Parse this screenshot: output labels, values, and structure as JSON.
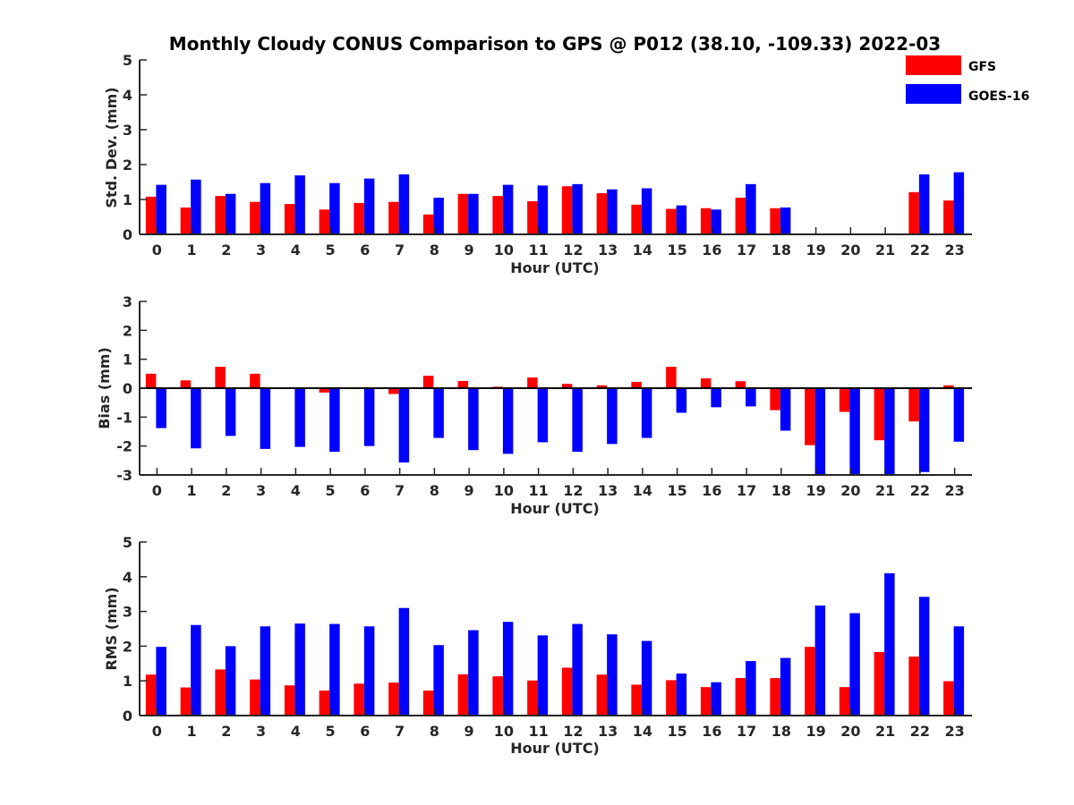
{
  "title": "Monthly Cloudy CONUS Comparison to GPS @ P012 (38.10, -109.33) 2022-03",
  "legend": [
    {
      "label": "GFS",
      "color": "#ff0000"
    },
    {
      "label": "GOES-16",
      "color": "#0000ff"
    }
  ],
  "chart_data": [
    {
      "type": "bar",
      "xlabel": "Hour (UTC)",
      "ylabel": "Std. Dev. (mm)",
      "ylim": [
        0,
        5
      ],
      "yticks": [
        0,
        1,
        2,
        3,
        4,
        5
      ],
      "categories": [
        "0",
        "1",
        "2",
        "3",
        "4",
        "5",
        "6",
        "7",
        "8",
        "9",
        "10",
        "11",
        "12",
        "13",
        "14",
        "15",
        "16",
        "17",
        "18",
        "19",
        "20",
        "21",
        "22",
        "23"
      ],
      "series": [
        {
          "name": "GFS",
          "color": "#ff0000",
          "values": [
            1.08,
            0.77,
            1.1,
            0.93,
            0.87,
            0.71,
            0.9,
            0.93,
            0.57,
            1.16,
            1.1,
            0.95,
            1.38,
            1.18,
            0.85,
            0.73,
            0.75,
            1.05,
            0.75,
            null,
            null,
            null,
            1.21,
            0.97
          ]
        },
        {
          "name": "GOES-16",
          "color": "#0000ff",
          "values": [
            1.42,
            1.57,
            1.16,
            1.47,
            1.69,
            1.47,
            1.6,
            1.72,
            1.05,
            1.16,
            1.42,
            1.4,
            1.44,
            1.29,
            1.32,
            0.83,
            0.71,
            1.44,
            0.77,
            null,
            null,
            null,
            1.72,
            1.78
          ]
        }
      ]
    },
    {
      "type": "bar",
      "xlabel": "Hour (UTC)",
      "ylabel": "Bias (mm)",
      "ylim": [
        -3,
        3
      ],
      "yticks": [
        -3,
        -2,
        -1,
        0,
        1,
        2,
        3
      ],
      "zero_line": true,
      "categories": [
        "0",
        "1",
        "2",
        "3",
        "4",
        "5",
        "6",
        "7",
        "8",
        "9",
        "10",
        "11",
        "12",
        "13",
        "14",
        "15",
        "16",
        "17",
        "18",
        "19",
        "20",
        "21",
        "22",
        "23"
      ],
      "series": [
        {
          "name": "GFS",
          "color": "#ff0000",
          "values": [
            0.5,
            0.27,
            0.74,
            0.5,
            0.0,
            -0.15,
            0.0,
            -0.2,
            0.43,
            0.25,
            0.05,
            0.37,
            0.15,
            0.1,
            0.22,
            0.74,
            0.34,
            0.24,
            -0.76,
            -1.97,
            -0.82,
            -1.8,
            -1.15,
            0.1
          ]
        },
        {
          "name": "GOES-16",
          "color": "#0000ff",
          "values": [
            -1.38,
            -2.08,
            -1.65,
            -2.1,
            -2.03,
            -2.2,
            -2.0,
            -2.57,
            -1.72,
            -2.14,
            -2.27,
            -1.87,
            -2.2,
            -1.93,
            -1.72,
            -0.85,
            -0.66,
            -0.63,
            -1.47,
            -3.0,
            -2.97,
            -3.0,
            -2.9,
            -1.85
          ]
        }
      ]
    },
    {
      "type": "bar",
      "xlabel": "Hour (UTC)",
      "ylabel": "RMS (mm)",
      "ylim": [
        0,
        5
      ],
      "yticks": [
        0,
        1,
        2,
        3,
        4,
        5
      ],
      "categories": [
        "0",
        "1",
        "2",
        "3",
        "4",
        "5",
        "6",
        "7",
        "8",
        "9",
        "10",
        "11",
        "12",
        "13",
        "14",
        "15",
        "16",
        "17",
        "18",
        "19",
        "20",
        "21",
        "22",
        "23"
      ],
      "series": [
        {
          "name": "GFS",
          "color": "#ff0000",
          "values": [
            1.18,
            0.81,
            1.33,
            1.04,
            0.87,
            0.72,
            0.92,
            0.95,
            0.72,
            1.19,
            1.13,
            1.01,
            1.38,
            1.18,
            0.89,
            1.02,
            0.82,
            1.08,
            1.08,
            1.98,
            0.82,
            1.83,
            1.7,
            0.99
          ]
        },
        {
          "name": "GOES-16",
          "color": "#0000ff",
          "values": [
            1.98,
            2.61,
            2.0,
            2.57,
            2.65,
            2.64,
            2.57,
            3.1,
            2.03,
            2.46,
            2.7,
            2.31,
            2.64,
            2.34,
            2.15,
            1.21,
            0.96,
            1.57,
            1.66,
            3.17,
            2.95,
            4.1,
            3.42,
            2.57
          ]
        }
      ]
    }
  ]
}
